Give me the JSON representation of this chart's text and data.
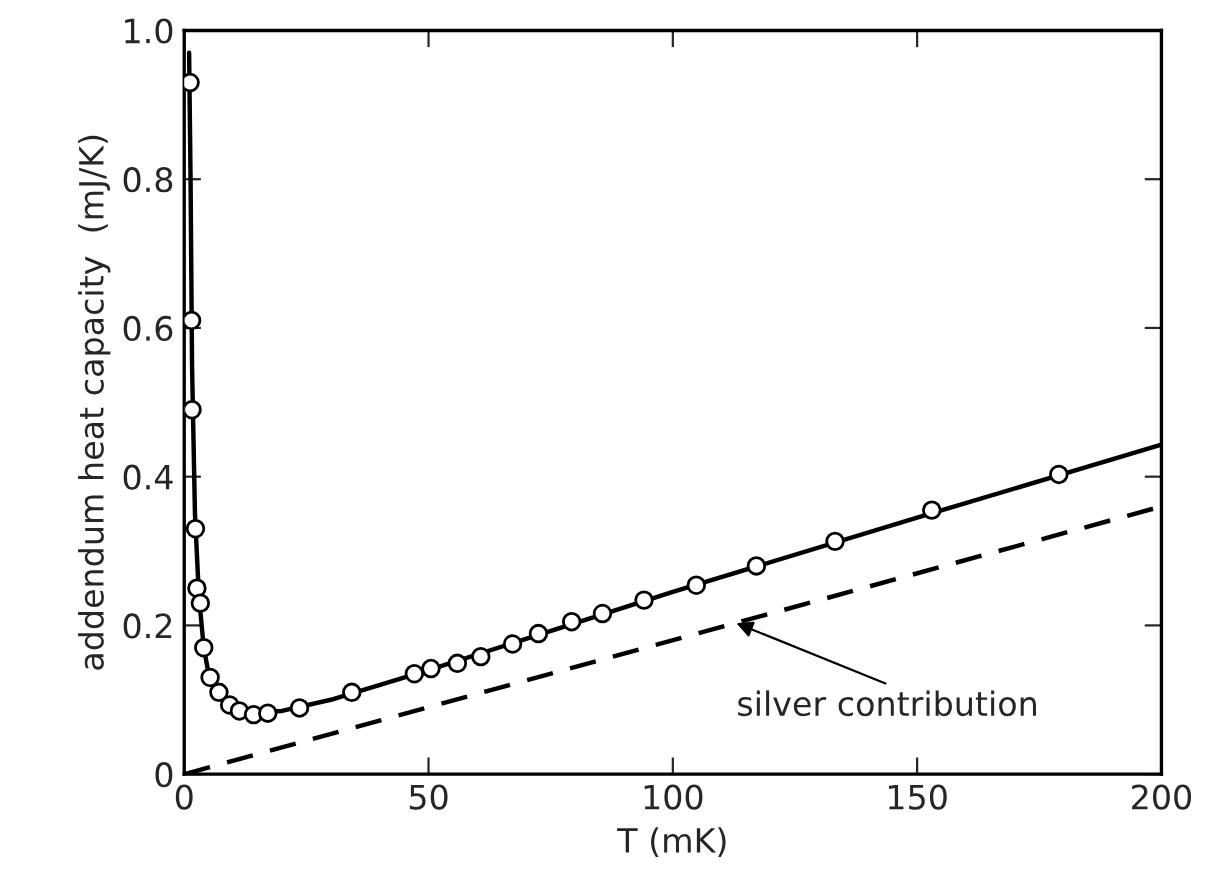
{
  "chart_data": {
    "type": "scatter",
    "xlabel": "T (mK)",
    "ylabel": "addendum heat capacity  (mJ/K)",
    "xlim": [
      0,
      200
    ],
    "ylim": [
      0,
      1.0
    ],
    "xticks": [
      0,
      50,
      100,
      150,
      200
    ],
    "yticks": [
      0,
      0.2,
      0.4,
      0.6,
      0.8,
      {
        "value": 1.0,
        "label": "1.0"
      }
    ],
    "grid": false,
    "legend": false,
    "annotations": [
      {
        "text": "silver contribution",
        "x": 113,
        "y": 0.203
      }
    ],
    "series": [
      {
        "type": "line",
        "color": "#000000",
        "line_style": "solid",
        "marker": "none",
        "x": [
          1.0,
          1.3,
          1.6,
          2.2,
          3,
          4,
          5,
          7,
          10,
          14,
          20,
          30,
          50,
          100,
          150,
          200
        ],
        "values": [
          0.97,
          0.8,
          0.55,
          0.35,
          0.24,
          0.17,
          0.135,
          0.105,
          0.09,
          0.083,
          0.085,
          0.1,
          0.14,
          0.245,
          0.345,
          0.443
        ]
      },
      {
        "type": "line",
        "color": "#000000",
        "line_style": "dashed",
        "marker": "none",
        "x": [
          0,
          200
        ],
        "values": [
          0,
          0.36
        ]
      },
      {
        "color": "#000000",
        "marker": "circle",
        "x": [
          1.2,
          1.5,
          1.6,
          2.3,
          2.6,
          3.3,
          4.0,
          5.3,
          7.1,
          9.3,
          11.3,
          14.2,
          17.1,
          23.6,
          34.3,
          47.1,
          50.5,
          55.9,
          60.7,
          67.2,
          72.5,
          79.3,
          85.6,
          94.1,
          104.8,
          117.1,
          133.2,
          153.0,
          179.0
        ],
        "values": [
          0.93,
          0.61,
          0.49,
          0.33,
          0.25,
          0.23,
          0.17,
          0.13,
          0.11,
          0.093,
          0.085,
          0.08,
          0.082,
          0.089,
          0.11,
          0.135,
          0.142,
          0.149,
          0.158,
          0.175,
          0.189,
          0.205,
          0.216,
          0.234,
          0.254,
          0.28,
          0.313,
          0.355,
          0.403
        ]
      }
    ]
  }
}
